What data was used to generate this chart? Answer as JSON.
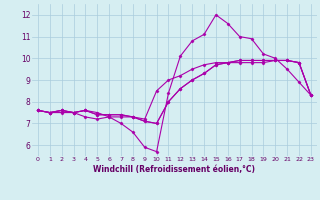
{
  "background_color": "#d6eef2",
  "grid_color": "#aaccdd",
  "line_color": "#aa00aa",
  "marker": "D",
  "markersize": 1.5,
  "linewidth": 0.8,
  "xlabel": "Windchill (Refroidissement éolien,°C)",
  "xlabel_fontsize": 5.5,
  "xlabel_color": "#660066",
  "ytick_fontsize": 5.5,
  "xtick_fontsize": 4.5,
  "ylim": [
    5.5,
    12.5
  ],
  "xlim": [
    -0.5,
    23.5
  ],
  "yticks": [
    6,
    7,
    8,
    9,
    10,
    11,
    12
  ],
  "xtick_labels": [
    "0",
    "1",
    "2",
    "3",
    "4",
    "5",
    "6",
    "7",
    "8",
    "9",
    "10",
    "11",
    "12",
    "13",
    "14",
    "15",
    "16",
    "17",
    "18",
    "19",
    "20",
    "21",
    "22",
    "23"
  ],
  "series": [
    [
      7.6,
      7.5,
      7.6,
      7.5,
      7.6,
      7.5,
      7.3,
      7.0,
      6.6,
      5.9,
      5.7,
      8.4,
      10.1,
      10.8,
      11.1,
      12.0,
      11.6,
      11.0,
      10.9,
      10.2,
      10.0,
      9.5,
      8.9,
      8.3
    ],
    [
      7.6,
      7.5,
      7.6,
      7.5,
      7.6,
      7.4,
      7.4,
      7.4,
      7.3,
      7.1,
      7.0,
      8.0,
      8.6,
      9.0,
      9.3,
      9.7,
      9.8,
      9.9,
      9.9,
      9.9,
      9.9,
      9.9,
      9.8,
      8.3
    ],
    [
      7.6,
      7.5,
      7.5,
      7.5,
      7.3,
      7.2,
      7.3,
      7.3,
      7.3,
      7.2,
      8.5,
      9.0,
      9.2,
      9.5,
      9.7,
      9.8,
      9.8,
      9.8,
      9.8,
      9.8,
      9.9,
      9.9,
      9.8,
      8.3
    ],
    [
      7.6,
      7.5,
      7.6,
      7.5,
      7.6,
      7.4,
      7.4,
      7.4,
      7.3,
      7.1,
      7.0,
      8.0,
      8.6,
      9.0,
      9.3,
      9.7,
      9.8,
      9.9,
      9.9,
      9.9,
      9.9,
      9.9,
      9.8,
      8.3
    ]
  ]
}
